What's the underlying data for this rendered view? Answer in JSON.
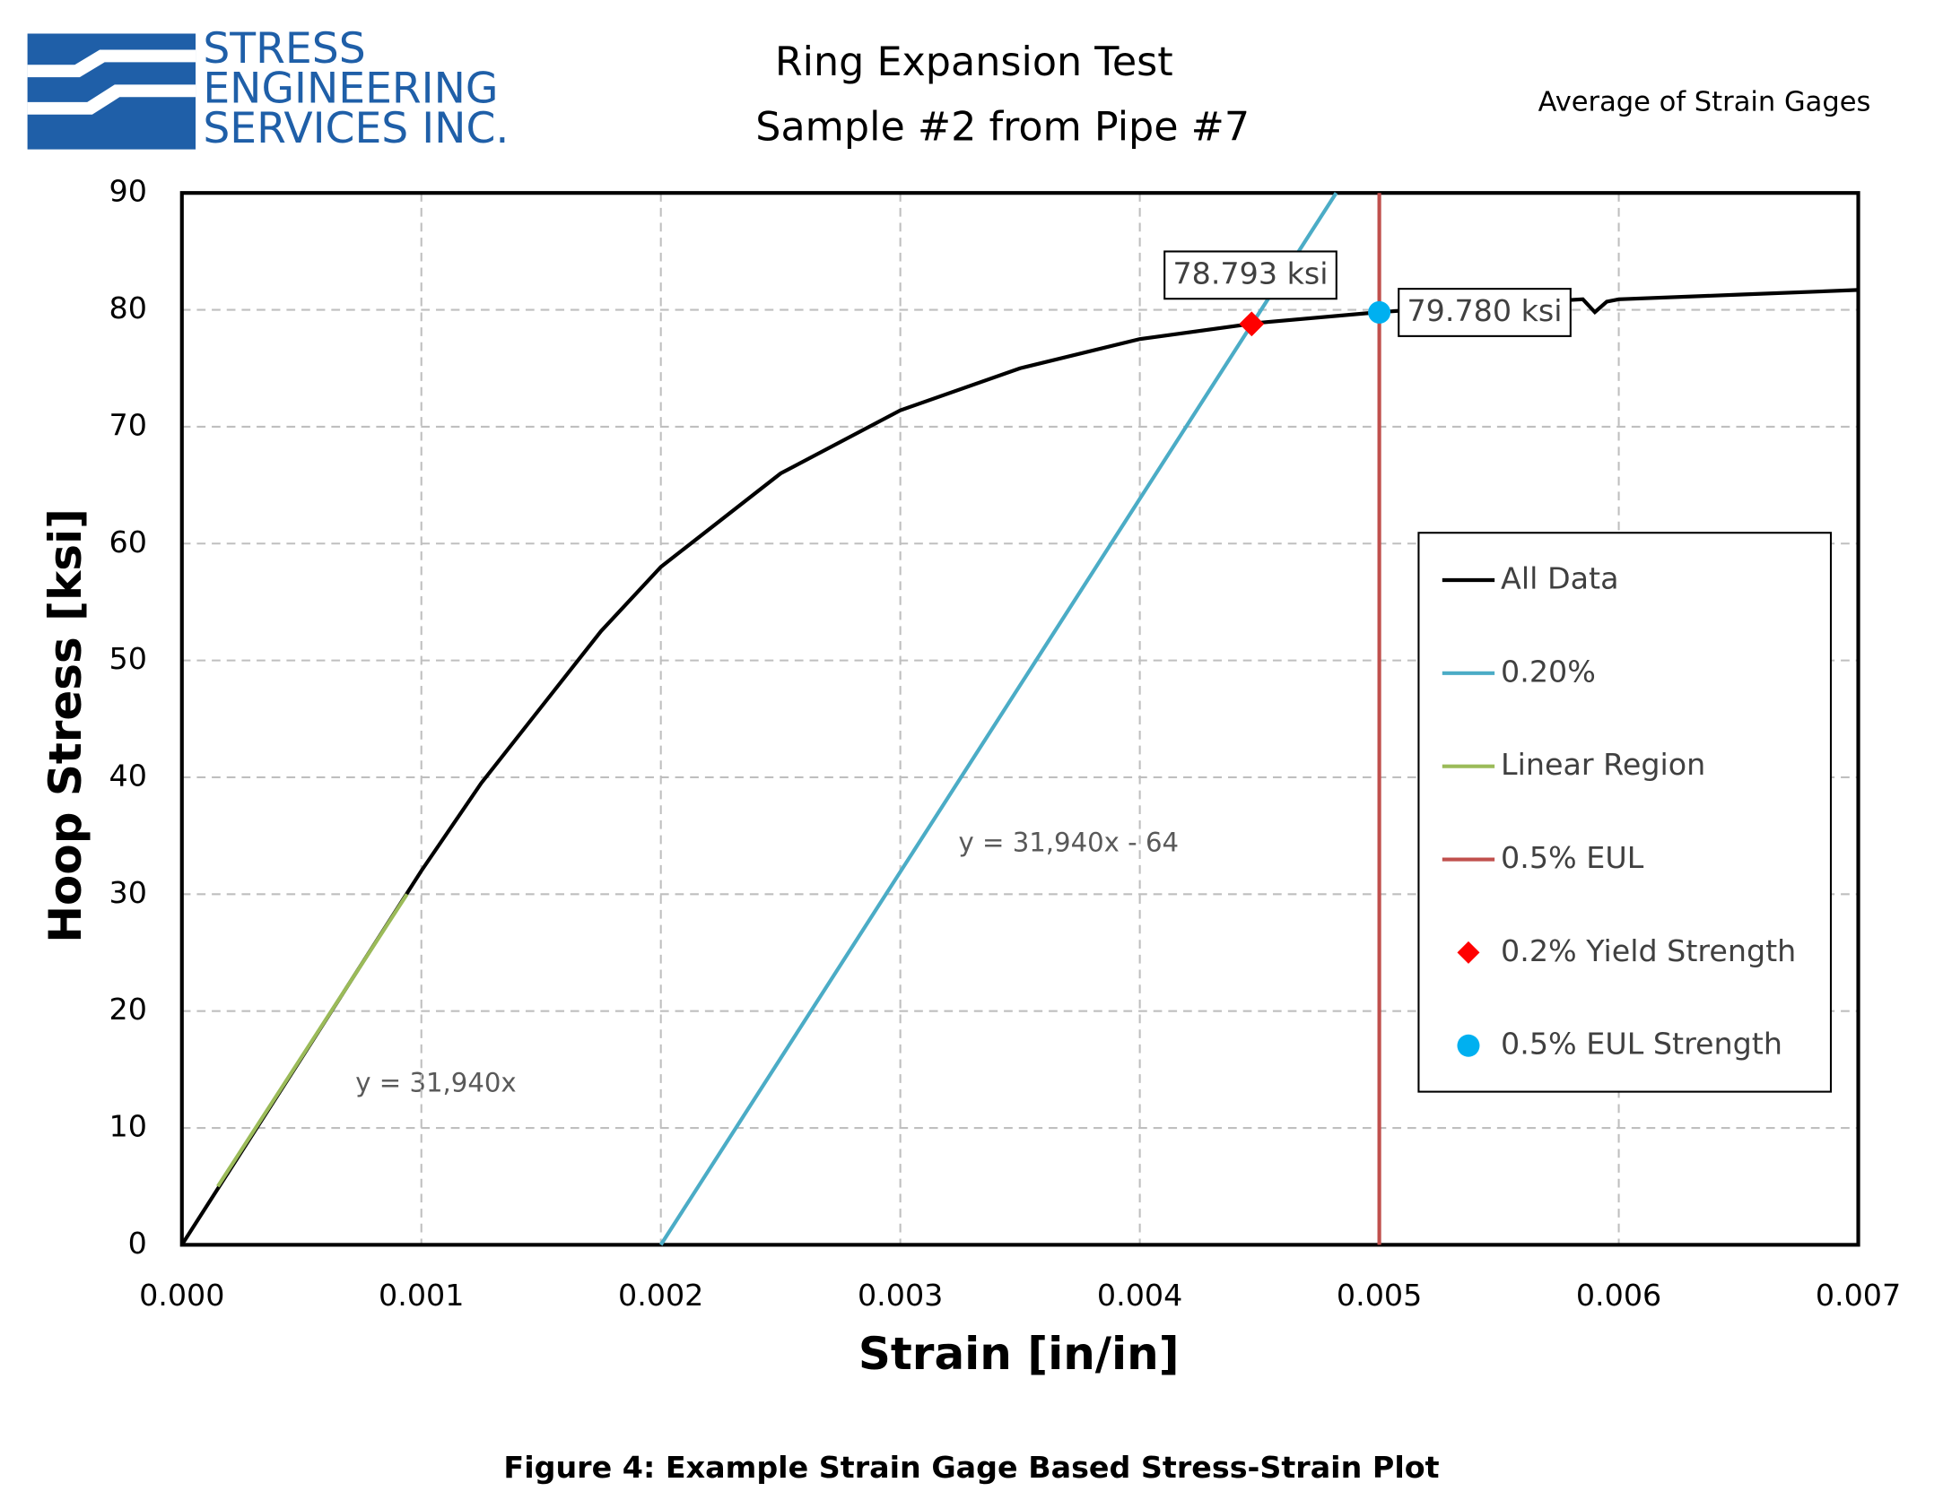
{
  "logo": {
    "lines": [
      "STRESS",
      "ENGINEERING",
      "SERVICES INC."
    ]
  },
  "chart_data": {
    "type": "line",
    "title": [
      "Ring Expansion Test",
      "Sample #2 from Pipe #7"
    ],
    "subtitle": "Average of Strain Gages",
    "x_label": "Strain [in/in]",
    "y_label": "Hoop Stress [ksi]",
    "xlim": [
      0,
      0.007
    ],
    "xticks": [
      {
        "value": 0,
        "label": "0.000"
      },
      0.001,
      0.002,
      0.003,
      0.004,
      0.005,
      0.006,
      0.007
    ],
    "ylim": [
      0,
      90
    ],
    "yticks": [
      0,
      10,
      20,
      30,
      40,
      50,
      60,
      70,
      80,
      90
    ],
    "grid": true,
    "legend": "right",
    "series": [
      {
        "name": "All Data",
        "color": "#000000",
        "kind": "line",
        "x": [
          0,
          0.00025,
          0.0005,
          0.00075,
          0.001,
          0.00125,
          0.0015,
          0.00175,
          0.002,
          0.0025,
          0.003,
          0.0035,
          0.004,
          0.0045,
          0.005,
          0.0055,
          0.00585,
          0.0059,
          0.00595,
          0.006,
          0.0065,
          0.007
        ],
        "values": [
          0,
          8,
          16,
          24,
          32,
          39.5,
          46,
          52.5,
          58,
          66,
          71.4,
          75,
          77.5,
          78.9,
          79.8,
          80.5,
          80.9,
          79.8,
          80.7,
          80.9,
          81.3,
          81.7
        ]
      },
      {
        "name": "0.20%",
        "color": "#4bacc6",
        "kind": "line",
        "x": [
          0.002,
          0.00482
        ],
        "values": [
          0,
          90
        ]
      },
      {
        "name": "Linear Region",
        "color": "#9bbb59",
        "kind": "line",
        "x": [
          0.00015,
          0.00094
        ],
        "values": [
          5,
          30
        ]
      },
      {
        "name": "0.5% EUL",
        "color": "#c0504d",
        "kind": "line",
        "x": [
          0.005,
          0.005
        ],
        "values": [
          0,
          90
        ]
      },
      {
        "name": "0.2% Yield Strength",
        "color": "#ff0000",
        "kind": "scatter",
        "marker": "diamond",
        "x": [
          0.004467
        ],
        "values": [
          78.793
        ],
        "value_labels": [
          "78.793 ksi"
        ]
      },
      {
        "name": "0.5% EUL Strength",
        "color": "#00b0f0",
        "kind": "scatter",
        "marker": "circle",
        "x": [
          0.005
        ],
        "values": [
          79.78
        ],
        "value_labels": [
          "79.780 ksi"
        ]
      }
    ],
    "annotations": [
      "y = 31,940x - 64",
      "y = 31,940x"
    ]
  },
  "caption": "Figure 4: Example Strain Gage Based Stress-Strain Plot"
}
